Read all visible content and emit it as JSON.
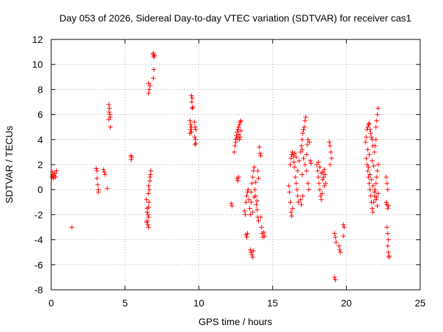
{
  "chart_data": {
    "type": "scatter",
    "title": "Day 053 of 2026, Sidereal Day-to-day VTEC variation (SDTVAR) for receiver cas1",
    "xlabel": "GPS time / hours",
    "ylabel": "SDTVAR / TECUs",
    "xlim": [
      0,
      25
    ],
    "ylim": [
      -8,
      12
    ],
    "xticks": [
      "0",
      "5",
      "10",
      "15",
      "20",
      "25"
    ],
    "yticks": [
      "-8",
      "-6",
      "-4",
      "-2",
      "0",
      "2",
      "4",
      "6",
      "8",
      "10",
      "12"
    ],
    "grid": true,
    "marker": "+",
    "color": "#ff0000",
    "series": [
      {
        "name": "cas1",
        "points": [
          [
            0.05,
            1.0
          ],
          [
            0.1,
            1.2
          ],
          [
            0.15,
            0.9
          ],
          [
            0.2,
            1.1
          ],
          [
            0.25,
            1.3
          ],
          [
            0.3,
            1.0
          ],
          [
            0.35,
            1.5
          ],
          [
            0.1,
            1.4
          ],
          [
            1.4,
            -3.0
          ],
          [
            3.05,
            1.7
          ],
          [
            3.1,
            1.5
          ],
          [
            3.1,
            0.9
          ],
          [
            3.15,
            0.4
          ],
          [
            3.2,
            0.0
          ],
          [
            3.2,
            -0.2
          ],
          [
            3.55,
            1.6
          ],
          [
            3.6,
            1.4
          ],
          [
            3.65,
            1.2
          ],
          [
            3.8,
            0.1
          ],
          [
            3.9,
            6.8
          ],
          [
            3.95,
            6.5
          ],
          [
            3.92,
            6.2
          ],
          [
            3.98,
            6.0
          ],
          [
            4.0,
            5.8
          ],
          [
            3.9,
            5.6
          ],
          [
            4.0,
            5.0
          ],
          [
            5.4,
            2.7
          ],
          [
            5.45,
            2.6
          ],
          [
            5.42,
            2.4
          ],
          [
            6.45,
            -0.8
          ],
          [
            6.5,
            -1.5
          ],
          [
            6.55,
            -2.0
          ],
          [
            6.5,
            -2.5
          ],
          [
            6.6,
            -3.0
          ],
          [
            6.55,
            -2.8
          ],
          [
            6.6,
            -2.2
          ],
          [
            6.62,
            -1.0
          ],
          [
            6.65,
            0.0
          ],
          [
            6.68,
            0.7
          ],
          [
            6.7,
            1.0
          ],
          [
            6.72,
            1.2
          ],
          [
            6.75,
            1.5
          ],
          [
            6.6,
            0.3
          ],
          [
            6.58,
            -0.3
          ],
          [
            6.5,
            -1.8
          ],
          [
            6.48,
            -2.6
          ],
          [
            6.6,
            -1.4
          ],
          [
            6.6,
            8.5
          ],
          [
            6.65,
            8.0
          ],
          [
            6.6,
            7.7
          ],
          [
            6.7,
            8.3
          ],
          [
            6.9,
            10.8
          ],
          [
            6.95,
            10.6
          ],
          [
            6.92,
            10.9
          ],
          [
            7.0,
            10.7
          ],
          [
            6.95,
            9.6
          ],
          [
            6.92,
            8.9
          ],
          [
            9.5,
            7.5
          ],
          [
            9.55,
            7.3
          ],
          [
            9.52,
            7.0
          ],
          [
            9.6,
            6.6
          ],
          [
            9.55,
            6.5
          ],
          [
            9.4,
            5.5
          ],
          [
            9.45,
            5.2
          ],
          [
            9.5,
            5.0
          ],
          [
            9.45,
            4.8
          ],
          [
            9.5,
            4.6
          ],
          [
            9.4,
            4.5
          ],
          [
            9.7,
            5.4
          ],
          [
            9.75,
            5.0
          ],
          [
            9.8,
            4.8
          ],
          [
            9.72,
            4.2
          ],
          [
            9.78,
            4.0
          ],
          [
            9.75,
            3.6
          ],
          [
            9.8,
            3.7
          ],
          [
            12.2,
            -1.1
          ],
          [
            12.25,
            -1.3
          ],
          [
            12.4,
            3.0
          ],
          [
            12.45,
            3.5
          ],
          [
            12.5,
            3.8
          ],
          [
            12.5,
            4.0
          ],
          [
            12.55,
            4.3
          ],
          [
            12.6,
            4.6
          ],
          [
            12.65,
            4.8
          ],
          [
            12.7,
            5.0
          ],
          [
            12.75,
            5.2
          ],
          [
            12.8,
            5.4
          ],
          [
            12.85,
            5.5
          ],
          [
            12.6,
            4.1
          ],
          [
            12.7,
            4.4
          ],
          [
            12.8,
            4.2
          ],
          [
            12.85,
            4.7
          ],
          [
            12.75,
            4.0
          ],
          [
            12.6,
            0.9
          ],
          [
            12.65,
            0.7
          ],
          [
            12.7,
            1.0
          ],
          [
            13.1,
            -1.7
          ],
          [
            13.15,
            -2.0
          ],
          [
            13.2,
            -3.6
          ],
          [
            13.25,
            -3.8
          ],
          [
            13.3,
            -3.5
          ],
          [
            13.2,
            -1.0
          ],
          [
            13.25,
            -0.5
          ],
          [
            13.3,
            -0.2
          ],
          [
            13.35,
            0.0
          ],
          [
            13.4,
            -0.8
          ],
          [
            13.45,
            -1.5
          ],
          [
            13.5,
            -2.0
          ],
          [
            13.55,
            -1.0
          ],
          [
            13.6,
            0.5
          ],
          [
            13.65,
            1.0
          ],
          [
            13.7,
            1.5
          ],
          [
            13.75,
            1.8
          ],
          [
            13.8,
            0.0
          ],
          [
            13.85,
            -0.5
          ],
          [
            13.9,
            -1.2
          ],
          [
            13.95,
            -1.6
          ],
          [
            14.0,
            -2.2
          ],
          [
            14.05,
            -2.5
          ],
          [
            13.5,
            -4.8
          ],
          [
            13.55,
            -5.0
          ],
          [
            13.6,
            -5.2
          ],
          [
            13.65,
            -5.4
          ],
          [
            13.7,
            -4.9
          ],
          [
            13.55,
            -0.2
          ],
          [
            13.65,
            -1.8
          ],
          [
            13.75,
            -0.6
          ],
          [
            13.85,
            0.6
          ],
          [
            13.95,
            -0.9
          ],
          [
            14.1,
            3.4
          ],
          [
            14.15,
            2.9
          ],
          [
            14.2,
            2.7
          ],
          [
            14.0,
            1.5
          ],
          [
            14.05,
            0.9
          ],
          [
            14.2,
            -2.2
          ],
          [
            14.25,
            -3.0
          ],
          [
            14.3,
            -3.5
          ],
          [
            14.35,
            -3.8
          ],
          [
            14.4,
            -3.4
          ],
          [
            14.45,
            -3.7
          ],
          [
            16.1,
            0.3
          ],
          [
            16.15,
            -0.2
          ],
          [
            16.2,
            -1.0
          ],
          [
            16.25,
            -1.8
          ],
          [
            16.3,
            -2.1
          ],
          [
            16.35,
            -1.5
          ],
          [
            16.2,
            2.0
          ],
          [
            16.25,
            2.5
          ],
          [
            16.3,
            2.8
          ],
          [
            16.35,
            3.0
          ],
          [
            16.4,
            2.7
          ],
          [
            16.45,
            2.2
          ],
          [
            16.5,
            1.8
          ],
          [
            16.55,
            1.0
          ],
          [
            16.6,
            0.5
          ],
          [
            16.65,
            0.0
          ],
          [
            16.7,
            -0.5
          ],
          [
            16.75,
            -1.0
          ],
          [
            16.6,
            2.6
          ],
          [
            16.8,
            2.3
          ],
          [
            16.5,
            2.9
          ],
          [
            16.7,
            1.5
          ],
          [
            16.9,
            3.0
          ],
          [
            16.95,
            3.5
          ],
          [
            17.0,
            4.0
          ],
          [
            17.05,
            4.5
          ],
          [
            17.1,
            4.8
          ],
          [
            17.15,
            5.0
          ],
          [
            17.2,
            5.5
          ],
          [
            17.25,
            5.8
          ],
          [
            17.0,
            3.2
          ],
          [
            17.1,
            2.5
          ],
          [
            17.2,
            2.0
          ],
          [
            17.3,
            1.5
          ],
          [
            17.4,
            0.5
          ],
          [
            17.45,
            0.0
          ],
          [
            17.3,
            2.8
          ],
          [
            17.35,
            3.6
          ],
          [
            17.4,
            4.0
          ],
          [
            17.5,
            3.8
          ],
          [
            17.55,
            2.3
          ],
          [
            17.6,
            2.1
          ],
          [
            17.0,
            1.2
          ],
          [
            16.9,
            -0.8
          ],
          [
            16.95,
            -1.2
          ],
          [
            17.05,
            -0.5
          ],
          [
            18.0,
            2.0
          ],
          [
            18.05,
            1.5
          ],
          [
            18.1,
            1.0
          ],
          [
            18.15,
            0.5
          ],
          [
            18.2,
            0.0
          ],
          [
            18.25,
            -0.5
          ],
          [
            18.3,
            -0.8
          ],
          [
            18.1,
            2.2
          ],
          [
            18.2,
            1.8
          ],
          [
            18.3,
            1.3
          ],
          [
            18.4,
            0.8
          ],
          [
            18.5,
            0.3
          ],
          [
            18.35,
            -0.3
          ],
          [
            18.45,
            1.0
          ],
          [
            18.5,
            1.6
          ],
          [
            18.55,
            1.2
          ],
          [
            18.6,
            0.5
          ],
          [
            18.4,
            1.4
          ],
          [
            18.85,
            3.8
          ],
          [
            18.9,
            3.5
          ],
          [
            18.95,
            3.0
          ],
          [
            19.0,
            2.5
          ],
          [
            18.9,
            2.0
          ],
          [
            19.2,
            -3.5
          ],
          [
            19.25,
            -3.8
          ],
          [
            19.3,
            -4.2
          ],
          [
            19.2,
            -7.0
          ],
          [
            19.25,
            -7.2
          ],
          [
            19.5,
            -4.5
          ],
          [
            19.55,
            -4.8
          ],
          [
            19.6,
            -5.0
          ],
          [
            19.8,
            -2.8
          ],
          [
            19.85,
            -3.0
          ],
          [
            19.8,
            -3.7
          ],
          [
            21.3,
            3.8
          ],
          [
            21.35,
            4.2
          ],
          [
            21.4,
            4.8
          ],
          [
            21.45,
            5.0
          ],
          [
            21.5,
            5.2
          ],
          [
            21.55,
            5.3
          ],
          [
            21.6,
            4.8
          ],
          [
            21.65,
            4.5
          ],
          [
            21.7,
            4.2
          ],
          [
            21.75,
            4.0
          ],
          [
            21.8,
            3.5
          ],
          [
            21.35,
            2.5
          ],
          [
            21.4,
            2.0
          ],
          [
            21.45,
            1.5
          ],
          [
            21.5,
            1.0
          ],
          [
            21.55,
            0.5
          ],
          [
            21.6,
            0.0
          ],
          [
            21.65,
            -0.5
          ],
          [
            21.7,
            -1.0
          ],
          [
            21.75,
            -1.5
          ],
          [
            21.8,
            -1.8
          ],
          [
            21.85,
            -1.0
          ],
          [
            21.9,
            -0.5
          ],
          [
            21.95,
            0.0
          ],
          [
            22.0,
            0.5
          ],
          [
            22.05,
            1.0
          ],
          [
            22.1,
            1.5
          ],
          [
            22.15,
            2.0
          ],
          [
            21.9,
            3.0
          ],
          [
            21.95,
            3.5
          ],
          [
            22.0,
            4.0
          ],
          [
            22.05,
            5.5
          ],
          [
            22.1,
            6.0
          ],
          [
            22.15,
            6.5
          ],
          [
            22.0,
            5.0
          ],
          [
            21.5,
            1.8
          ],
          [
            21.6,
            1.2
          ],
          [
            21.7,
            0.8
          ],
          [
            21.8,
            0.3
          ],
          [
            21.9,
            -0.2
          ],
          [
            22.0,
            -0.8
          ],
          [
            22.1,
            -1.3
          ],
          [
            22.05,
            -0.6
          ],
          [
            22.15,
            -0.3
          ],
          [
            21.45,
            3.2
          ],
          [
            21.55,
            2.8
          ],
          [
            21.75,
            2.3
          ],
          [
            21.85,
            1.9
          ],
          [
            22.7,
            1.0
          ],
          [
            22.75,
            0.5
          ],
          [
            22.8,
            0.0
          ],
          [
            22.7,
            -1.0
          ],
          [
            22.75,
            -1.2
          ],
          [
            22.8,
            -1.5
          ],
          [
            22.85,
            -1.3
          ],
          [
            22.75,
            -3.0
          ],
          [
            22.8,
            -3.5
          ],
          [
            22.85,
            -4.0
          ],
          [
            22.8,
            -4.5
          ],
          [
            22.85,
            -5.0
          ],
          [
            22.9,
            -5.3
          ],
          [
            22.88,
            -5.4
          ]
        ]
      }
    ]
  }
}
